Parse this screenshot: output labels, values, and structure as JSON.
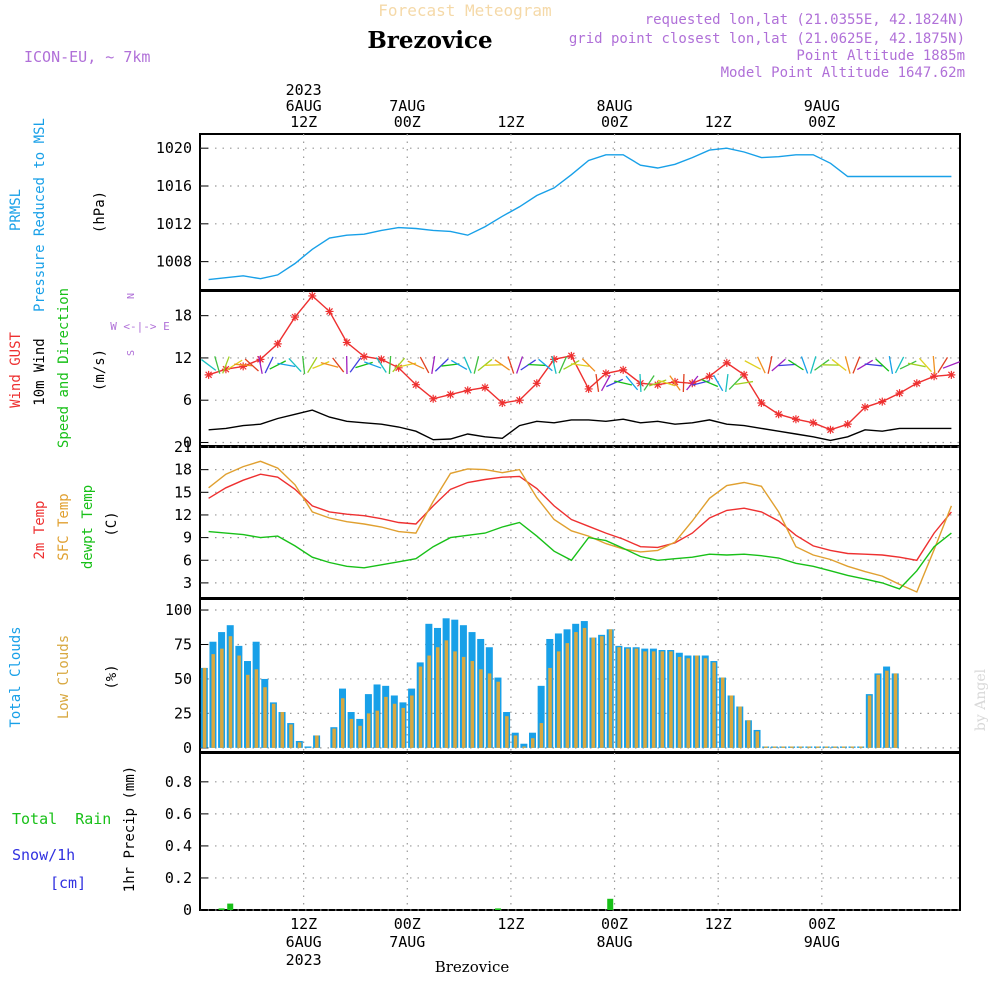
{
  "header": {
    "product": "Forecast Meteogram",
    "model": "ICON-EU, ~ 7km",
    "location": "Brezovice",
    "requested": "requested lon,lat (21.0355E, 42.1824N)",
    "gridpoint": "grid point closest lon,lat (21.0625E, 42.1875N)",
    "altitude": "Point Altitude 1885m",
    "model_altitude": "Model Point Altitude 1647.62m",
    "footer_location": "Brezovice",
    "credit": "by Angel"
  },
  "time_axis": {
    "top_labels": [
      {
        "h": 12,
        "lines": [
          "2023",
          "6AUG",
          "12Z"
        ]
      },
      {
        "h": 24,
        "lines": [
          "7AUG",
          "00Z"
        ]
      },
      {
        "h": 36,
        "lines": [
          "12Z"
        ]
      },
      {
        "h": 48,
        "lines": [
          "8AUG",
          "00Z"
        ]
      },
      {
        "h": 60,
        "lines": [
          "12Z"
        ]
      },
      {
        "h": 72,
        "lines": [
          "9AUG",
          "00Z"
        ]
      }
    ],
    "bottom_labels": [
      {
        "h": 12,
        "lines": [
          "12Z",
          "6AUG",
          "2023"
        ]
      },
      {
        "h": 24,
        "lines": [
          "00Z",
          "7AUG"
        ]
      },
      {
        "h": 36,
        "lines": [
          "12Z"
        ]
      },
      {
        "h": 48,
        "lines": [
          "00Z",
          "8AUG"
        ]
      },
      {
        "h": 60,
        "lines": [
          "12Z"
        ]
      },
      {
        "h": 72,
        "lines": [
          "00Z",
          "9AUG"
        ]
      }
    ]
  },
  "panels": {
    "pressure": {
      "title1": "PRMSL",
      "title2": "Pressure Reduced to MSL",
      "unit": "(hPa)",
      "color": "#18a0e8"
    },
    "wind": {
      "gust_label": "Wind GUST",
      "wind_label": "10m Wind",
      "dir_label": "Speed and Direction",
      "unit": "(m/s)",
      "compass_n": "N",
      "compass_s": "S",
      "compass_ew": "W <-|-> E",
      "gust_color": "#ee3030",
      "speed_color": "#000000",
      "dir_color": "#18c018"
    },
    "temp": {
      "t2m_label": "2m Temp",
      "sfc_label": "SFC Temp",
      "dew_label": "dewpt Temp",
      "unit": "(C)",
      "t2m_color": "#ee3030",
      "sfc_color": "#e0a030",
      "dew_color": "#18c018"
    },
    "clouds": {
      "total_label": "Total Clouds",
      "low_label": "Low Clouds",
      "unit": "(%)",
      "total_color": "#18a0e8",
      "low_color": "#d8a840"
    },
    "precip": {
      "rain_label": "Total  Rain",
      "snow_label": "Snow/1h",
      "snow_unit": "[cm]",
      "axis_label": "1hr Precip (mm)",
      "rain_color": "#18c018",
      "snow_color": "#3030e0"
    }
  },
  "chart_data": [
    {
      "type": "line",
      "title": "PRMSL Pressure Reduced to MSL",
      "ylabel": "(hPa)",
      "ylim": [
        1005,
        1021.5
      ],
      "yticks": [
        1008,
        1012,
        1016,
        1020
      ],
      "x_unit": "hours since 6AUG 00Z",
      "series": [
        {
          "name": "PRMSL",
          "x": [
            1,
            3,
            5,
            7,
            9,
            11,
            13,
            15,
            17,
            19,
            21,
            23,
            25,
            27,
            29,
            31,
            33,
            35,
            37,
            39,
            41,
            43,
            45,
            47,
            49,
            51,
            53,
            55,
            57,
            59,
            61,
            63,
            65,
            67,
            69,
            71,
            73,
            75,
            77,
            79,
            81,
            83,
            85,
            87
          ],
          "values": [
            1006.1,
            1006.3,
            1006.5,
            1006.2,
            1006.6,
            1007.8,
            1009.3,
            1010.5,
            1010.8,
            1010.9,
            1011.3,
            1011.6,
            1011.5,
            1011.3,
            1011.2,
            1010.8,
            1011.7,
            1012.8,
            1013.8,
            1015.0,
            1015.8,
            1017.2,
            1018.7,
            1019.3,
            1019.3,
            1018.2,
            1017.9,
            1018.3,
            1019.0,
            1019.8,
            1020.0,
            1019.6,
            1019.0,
            1019.1,
            1019.3,
            1019.3,
            1018.4,
            1017.0,
            1017.0,
            1017.0,
            1017.0,
            1017.0,
            1017.0,
            1017.0
          ]
        }
      ]
    },
    {
      "type": "line",
      "title": "Wind GUST / 10m Wind Speed and Direction",
      "ylabel": "(m/s)",
      "ylim": [
        -0.5,
        21.5
      ],
      "yticks": [
        0,
        6,
        12,
        18
      ],
      "series": [
        {
          "name": "Wind GUST",
          "x": [
            1,
            3,
            5,
            7,
            9,
            11,
            13,
            15,
            17,
            19,
            21,
            23,
            25,
            27,
            29,
            31,
            33,
            35,
            37,
            39,
            41,
            43,
            45,
            47,
            49,
            51,
            53,
            55,
            57,
            59,
            61,
            63,
            65,
            67,
            69,
            71,
            73,
            75,
            77,
            79,
            81,
            83,
            85,
            87
          ],
          "values": [
            9.6,
            10.4,
            10.8,
            11.8,
            14.0,
            17.8,
            20.8,
            18.6,
            14.2,
            12.2,
            11.8,
            10.6,
            8.2,
            6.2,
            6.8,
            7.4,
            7.8,
            5.6,
            6.0,
            8.4,
            11.8,
            12.3,
            7.6,
            9.8,
            10.3,
            8.4,
            8.2,
            8.6,
            8.4,
            9.4,
            11.3,
            9.6,
            5.6,
            4.0,
            3.3,
            2.8,
            1.8,
            2.6,
            5.0,
            5.8,
            7.0,
            8.4,
            9.4,
            9.6
          ]
        },
        {
          "name": "10m Wind",
          "x": [
            1,
            3,
            5,
            7,
            9,
            11,
            13,
            15,
            17,
            19,
            21,
            23,
            25,
            27,
            29,
            31,
            33,
            35,
            37,
            39,
            41,
            43,
            45,
            47,
            49,
            51,
            53,
            55,
            57,
            59,
            61,
            63,
            65,
            67,
            69,
            71,
            73,
            75,
            77,
            79,
            81,
            83,
            85,
            87
          ],
          "values": [
            1.8,
            2.0,
            2.4,
            2.6,
            3.4,
            4.0,
            4.6,
            3.6,
            3.0,
            2.8,
            2.6,
            2.2,
            1.6,
            0.4,
            0.5,
            1.2,
            0.8,
            0.6,
            2.4,
            3.0,
            2.8,
            3.2,
            3.2,
            3.0,
            3.3,
            2.8,
            3.0,
            2.6,
            2.8,
            3.2,
            2.6,
            2.4,
            2.0,
            1.6,
            1.2,
            0.8,
            0.3,
            0.8,
            1.8,
            1.6,
            2.0,
            2.0,
            2.0,
            2.0
          ]
        }
      ]
    },
    {
      "type": "line",
      "title": "2m Temp / SFC Temp / dewpt Temp",
      "ylabel": "(C)",
      "ylim": [
        1,
        21
      ],
      "yticks": [
        3,
        6,
        9,
        12,
        15,
        18,
        21
      ],
      "series": [
        {
          "name": "2m Temp",
          "x": [
            1,
            3,
            5,
            7,
            9,
            11,
            13,
            15,
            17,
            19,
            21,
            23,
            25,
            27,
            29,
            31,
            33,
            35,
            37,
            39,
            41,
            43,
            45,
            47,
            49,
            51,
            53,
            55,
            57,
            59,
            61,
            63,
            65,
            67,
            69,
            71,
            73,
            75,
            77,
            79,
            81,
            83,
            85,
            87
          ],
          "values": [
            14.2,
            15.6,
            16.6,
            17.4,
            17.0,
            15.4,
            13.2,
            12.4,
            12.1,
            11.9,
            11.5,
            11.0,
            10.8,
            13.2,
            15.4,
            16.3,
            16.7,
            17.0,
            17.1,
            15.5,
            13.2,
            11.4,
            10.5,
            9.6,
            8.8,
            7.8,
            7.7,
            8.3,
            9.6,
            11.6,
            12.6,
            12.9,
            12.4,
            11.2,
            9.3,
            7.9,
            7.3,
            6.9,
            6.8,
            6.7,
            6.4,
            6.0,
            9.6,
            12.4
          ]
        },
        {
          "name": "SFC Temp",
          "x": [
            1,
            3,
            5,
            7,
            9,
            11,
            13,
            15,
            17,
            19,
            21,
            23,
            25,
            27,
            29,
            31,
            33,
            35,
            37,
            39,
            41,
            43,
            45,
            47,
            49,
            51,
            53,
            55,
            57,
            59,
            61,
            63,
            65,
            67,
            69,
            71,
            73,
            75,
            77,
            79,
            81,
            83,
            85,
            87
          ],
          "values": [
            15.6,
            17.4,
            18.4,
            19.1,
            18.2,
            16.0,
            12.4,
            11.6,
            11.1,
            10.8,
            10.4,
            9.8,
            9.6,
            13.8,
            17.5,
            18.1,
            18.0,
            17.6,
            18.0,
            14.3,
            11.4,
            9.9,
            9.2,
            8.2,
            7.5,
            7.1,
            7.3,
            8.4,
            11.2,
            14.2,
            15.9,
            16.3,
            15.8,
            12.4,
            7.8,
            6.7,
            6.1,
            5.2,
            4.5,
            3.9,
            2.8,
            1.8,
            7.4,
            13.2
          ]
        },
        {
          "name": "dewpt Temp",
          "x": [
            1,
            3,
            5,
            7,
            9,
            11,
            13,
            15,
            17,
            19,
            21,
            23,
            25,
            27,
            29,
            31,
            33,
            35,
            37,
            39,
            41,
            43,
            45,
            47,
            49,
            51,
            53,
            55,
            57,
            59,
            61,
            63,
            65,
            67,
            69,
            71,
            73,
            75,
            77,
            79,
            81,
            83,
            85,
            87
          ],
          "values": [
            9.8,
            9.6,
            9.4,
            9.0,
            9.2,
            7.9,
            6.4,
            5.7,
            5.2,
            5.0,
            5.4,
            5.8,
            6.2,
            7.8,
            9.0,
            9.3,
            9.6,
            10.4,
            11.0,
            9.2,
            7.2,
            6.0,
            9.0,
            8.6,
            7.6,
            6.5,
            6.0,
            6.2,
            6.4,
            6.8,
            6.7,
            6.8,
            6.6,
            6.3,
            5.6,
            5.2,
            4.6,
            4.0,
            3.5,
            3.0,
            2.2,
            4.6,
            7.8,
            9.6
          ]
        }
      ]
    },
    {
      "type": "bar",
      "title": "Total Clouds / Low Clouds",
      "ylabel": "(%)",
      "ylim": [
        -3,
        108
      ],
      "yticks": [
        0,
        25,
        50,
        75,
        100
      ],
      "x": [
        0,
        1,
        2,
        3,
        4,
        5,
        6,
        7,
        8,
        9,
        10,
        11,
        12,
        13,
        14,
        15,
        16,
        17,
        18,
        19,
        20,
        21,
        22,
        23,
        24,
        25,
        26,
        27,
        28,
        29,
        30,
        31,
        32,
        33,
        34,
        35,
        36,
        37,
        38,
        39,
        40,
        41,
        42,
        43,
        44,
        45,
        46,
        47,
        48,
        49,
        50,
        51,
        52,
        53,
        54,
        55,
        56,
        57,
        58,
        59,
        60,
        61,
        62,
        63,
        64,
        65,
        66,
        67,
        68,
        69,
        70,
        71,
        72,
        73,
        74,
        75,
        76,
        77,
        78,
        79,
        80,
        81,
        82,
        83,
        84,
        85,
        86,
        87
      ],
      "series": [
        {
          "name": "Total Clouds",
          "values": [
            58,
            77,
            84,
            89,
            74,
            63,
            77,
            50,
            33,
            26,
            18,
            5,
            1,
            9,
            0,
            15,
            43,
            26,
            21,
            39,
            46,
            45,
            38,
            33,
            43,
            62,
            90,
            87,
            94,
            93,
            89,
            84,
            79,
            73,
            51,
            26,
            11,
            3,
            11,
            45,
            79,
            83,
            86,
            90,
            92,
            80,
            82,
            86,
            74,
            73,
            73,
            72,
            72,
            71,
            71,
            69,
            67,
            67,
            67,
            63,
            51,
            38,
            30,
            20,
            13,
            1,
            1,
            1,
            1,
            1,
            1,
            1,
            1,
            1,
            1,
            1,
            1,
            39,
            54,
            59,
            54,
            0,
            0,
            0,
            0,
            0,
            0,
            0
          ]
        },
        {
          "name": "Low Clouds",
          "values": [
            58,
            68,
            72,
            81,
            67,
            53,
            57,
            44,
            32,
            26,
            17,
            4,
            0,
            9,
            0,
            14,
            36,
            21,
            16,
            25,
            27,
            37,
            32,
            29,
            38,
            59,
            67,
            73,
            78,
            70,
            66,
            63,
            57,
            54,
            48,
            23,
            9,
            1,
            7,
            18,
            58,
            70,
            76,
            84,
            87,
            80,
            81,
            86,
            73,
            72,
            72,
            70,
            70,
            70,
            70,
            66,
            65,
            67,
            65,
            62,
            51,
            38,
            30,
            20,
            12,
            1,
            1,
            1,
            1,
            1,
            1,
            1,
            1,
            1,
            1,
            1,
            1,
            38,
            53,
            56,
            54,
            0,
            0,
            0,
            0,
            0,
            0,
            0
          ]
        }
      ]
    },
    {
      "type": "bar",
      "title": "1hr Precip (mm)",
      "ylabel": "1hr Precip (mm)",
      "ylim": [
        0,
        0.98
      ],
      "yticks": [
        0,
        0.2,
        0.4,
        0.6,
        0.8
      ],
      "series": [
        {
          "name": "Total Rain",
          "x": [
            2,
            3,
            34,
            47
          ],
          "values": [
            0.01,
            0.04,
            0.01,
            0.07
          ]
        },
        {
          "name": "Snow/1h",
          "x": [],
          "values": []
        }
      ]
    }
  ]
}
